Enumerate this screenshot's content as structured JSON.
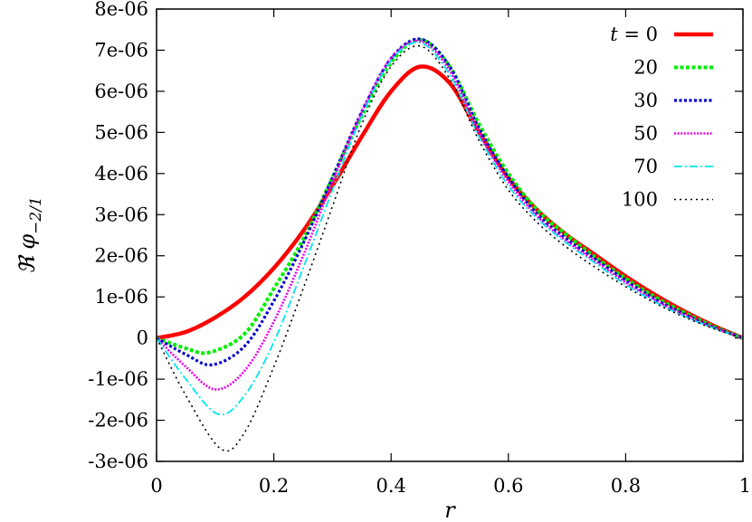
{
  "chart_data": {
    "type": "line",
    "title": "",
    "xlabel": "r",
    "ylabel": "ℜ φ",
    "ylabel_subscript": "−2/1",
    "xlim": [
      0,
      1
    ],
    "ylim": [
      -3e-06,
      8e-06
    ],
    "x_ticks": [
      0,
      0.2,
      0.4,
      0.6,
      0.8,
      1
    ],
    "x_tick_labels": [
      "0",
      "0.2",
      "0.4",
      "0.6",
      "0.8",
      "1"
    ],
    "y_ticks": [
      -3e-06,
      -2e-06,
      -1e-06,
      0,
      1e-06,
      2e-06,
      3e-06,
      4e-06,
      5e-06,
      6e-06,
      7e-06,
      8e-06
    ],
    "y_tick_labels": [
      "-3e-06",
      "-2e-06",
      "-1e-06",
      "0",
      "1e-06",
      "2e-06",
      "3e-06",
      "4e-06",
      "5e-06",
      "6e-06",
      "7e-06",
      "8e-06"
    ],
    "grid": false,
    "legend_position": "top-right",
    "legend_title_prefix": "t = ",
    "series": [
      {
        "name": "0",
        "color": "#ff0000",
        "x": [
          0,
          0.05,
          0.1,
          0.15,
          0.2,
          0.25,
          0.3,
          0.35,
          0.4,
          0.45,
          0.5,
          0.55,
          0.6,
          0.65,
          0.7,
          0.75,
          0.8,
          0.85,
          0.9,
          0.95,
          1.0
        ],
        "y": [
          0,
          1.5e-07,
          5e-07,
          1e-06,
          1.7e-06,
          2.6e-06,
          3.7e-06,
          4.9e-06,
          6e-06,
          6.6e-06,
          6.2e-06,
          5e-06,
          3.9e-06,
          3.1e-06,
          2.5e-06,
          2e-06,
          1.5e-06,
          1.05e-06,
          6.5e-07,
          3e-07,
          0
        ]
      },
      {
        "name": "20",
        "color": "#00ee00",
        "x": [
          0,
          0.05,
          0.09,
          0.15,
          0.2,
          0.25,
          0.3,
          0.35,
          0.4,
          0.45,
          0.5,
          0.55,
          0.6,
          0.65,
          0.7,
          0.75,
          0.8,
          0.85,
          0.9,
          0.95,
          1.0
        ],
        "y": [
          0,
          -2.5e-07,
          -3.5e-07,
          1e-07,
          1.2e-06,
          2.4e-06,
          3.9e-06,
          5.4e-06,
          6.7e-06,
          7.25e-06,
          6.6e-06,
          5.2e-06,
          4e-06,
          3.1e-06,
          2.5e-06,
          1.95e-06,
          1.45e-06,
          1e-06,
          6.2e-07,
          2.8e-07,
          0
        ]
      },
      {
        "name": "30",
        "color": "#0000cc",
        "x": [
          0,
          0.05,
          0.095,
          0.15,
          0.2,
          0.25,
          0.3,
          0.35,
          0.4,
          0.45,
          0.5,
          0.55,
          0.6,
          0.65,
          0.7,
          0.75,
          0.8,
          0.85,
          0.9,
          0.95,
          1.0
        ],
        "y": [
          0,
          -4e-07,
          -6.5e-07,
          -2e-07,
          9e-07,
          2.3e-06,
          3.9e-06,
          5.5e-06,
          6.8e-06,
          7.27e-06,
          6.6e-06,
          5.1e-06,
          3.9e-06,
          3e-06,
          2.4e-06,
          1.9e-06,
          1.4e-06,
          9.5e-07,
          5.8e-07,
          2.6e-07,
          0
        ]
      },
      {
        "name": "50",
        "color": "#ee00ee",
        "x": [
          0,
          0.05,
          0.1,
          0.15,
          0.2,
          0.25,
          0.3,
          0.35,
          0.4,
          0.45,
          0.5,
          0.55,
          0.6,
          0.65,
          0.7,
          0.75,
          0.8,
          0.85,
          0.9,
          0.95,
          1.0
        ],
        "y": [
          0,
          -7e-07,
          -1.25e-06,
          -8e-07,
          4e-07,
          2e-06,
          3.8e-06,
          5.5e-06,
          6.8e-06,
          7.22e-06,
          6.5e-06,
          5e-06,
          3.8e-06,
          2.95e-06,
          2.35e-06,
          1.85e-06,
          1.35e-06,
          9.2e-07,
          5.6e-07,
          2.5e-07,
          0
        ]
      },
      {
        "name": "70",
        "color": "#00e5ee",
        "x": [
          0,
          0.05,
          0.105,
          0.15,
          0.2,
          0.25,
          0.3,
          0.35,
          0.4,
          0.45,
          0.5,
          0.55,
          0.6,
          0.65,
          0.7,
          0.75,
          0.8,
          0.85,
          0.9,
          0.95,
          1.0
        ],
        "y": [
          0,
          -1e-06,
          -1.85e-06,
          -1.4e-06,
          -1e-07,
          1.7e-06,
          3.6e-06,
          5.4e-06,
          6.75e-06,
          7.18e-06,
          6.4e-06,
          4.9e-06,
          3.7e-06,
          2.9e-06,
          2.3e-06,
          1.8e-06,
          1.3e-06,
          8.8e-07,
          5.3e-07,
          2.4e-07,
          0
        ]
      },
      {
        "name": "100",
        "color": "#000000",
        "x": [
          0,
          0.05,
          0.11,
          0.15,
          0.2,
          0.25,
          0.3,
          0.35,
          0.4,
          0.45,
          0.5,
          0.55,
          0.6,
          0.65,
          0.7,
          0.75,
          0.8,
          0.85,
          0.9,
          0.95,
          1.0
        ],
        "y": [
          0,
          -1.4e-06,
          -2.7e-06,
          -2.3e-06,
          -7e-07,
          1.2e-06,
          3.2e-06,
          5.2e-06,
          6.6e-06,
          7.1e-06,
          6.3e-06,
          4.8e-06,
          3.6e-06,
          2.8e-06,
          2.2e-06,
          1.7e-06,
          1.25e-06,
          8.5e-07,
          5.1e-07,
          2.3e-07,
          0
        ]
      }
    ]
  }
}
